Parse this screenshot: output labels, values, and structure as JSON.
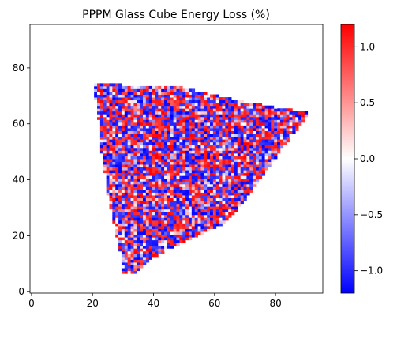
{
  "chart_data": {
    "type": "heatmap",
    "title": "PPPM Glass Cube Energy Loss (%)",
    "xlabel": "",
    "ylabel": "",
    "xlim": [
      -0.5,
      95.5
    ],
    "ylim": [
      -0.5,
      95.5
    ],
    "x_ticks": [
      0,
      20,
      40,
      60,
      80
    ],
    "y_ticks": [
      0,
      20,
      40,
      60,
      80
    ],
    "colorbar": {
      "min": -1.2,
      "max": 1.2,
      "ticks": [
        -1.0,
        -0.5,
        0.0,
        0.5,
        1.0
      ],
      "tick_labels": [
        "−1.0",
        "−0.5",
        "0.0",
        "0.5",
        "1.0"
      ],
      "colormap": "bwr",
      "colors": [
        "#0000ff",
        "#ffffff",
        "#ff0000"
      ]
    },
    "grid": false,
    "cell_size": 1,
    "data_region": {
      "description_of_polygon_vertices_in_data_units": null,
      "polygon": [
        [
          20,
          75
        ],
        [
          30,
          74
        ],
        [
          50,
          73
        ],
        [
          70,
          68
        ],
        [
          91,
          64
        ],
        [
          90,
          62
        ],
        [
          82,
          51
        ],
        [
          75,
          40
        ],
        [
          68,
          30
        ],
        [
          63,
          24
        ],
        [
          55,
          20
        ],
        [
          45,
          15
        ],
        [
          40,
          12
        ],
        [
          33,
          6
        ],
        [
          30,
          7
        ],
        [
          29,
          15
        ],
        [
          25,
          35
        ],
        [
          23,
          50
        ],
        [
          22,
          62
        ]
      ]
    },
    "values_note": null,
    "random_seed": 7
  }
}
